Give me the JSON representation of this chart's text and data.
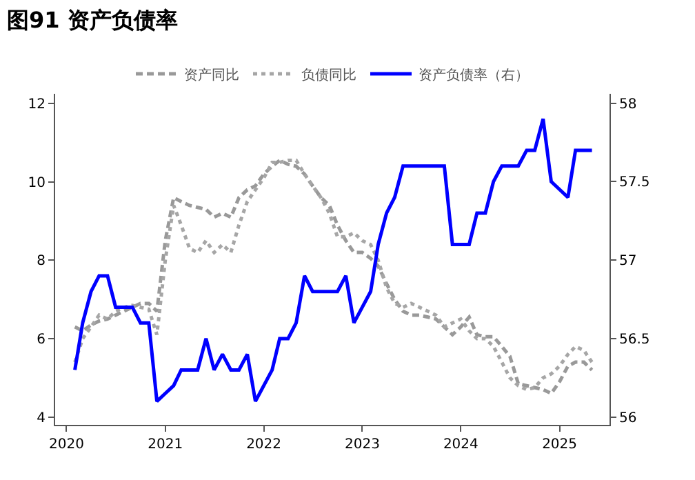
{
  "chart_data": {
    "type": "line",
    "title": "图91 资产负债率",
    "legend": "top",
    "marker": "none",
    "x": [
      "2020-02",
      "2020-03",
      "2020-04",
      "2020-05",
      "2020-06",
      "2020-07",
      "2020-08",
      "2020-09",
      "2020-10",
      "2020-11",
      "2020-12",
      "2021-01",
      "2021-02",
      "2021-03",
      "2021-04",
      "2021-05",
      "2021-06",
      "2021-07",
      "2021-08",
      "2021-09",
      "2021-10",
      "2021-11",
      "2021-12",
      "2022-01",
      "2022-02",
      "2022-03",
      "2022-04",
      "2022-05",
      "2022-06",
      "2022-07",
      "2022-08",
      "2022-09",
      "2022-10",
      "2022-11",
      "2022-12",
      "2023-01",
      "2023-02",
      "2023-03",
      "2023-04",
      "2023-05",
      "2023-06",
      "2023-07",
      "2023-08",
      "2023-09",
      "2023-10",
      "2023-11",
      "2023-12",
      "2024-01",
      "2024-02",
      "2024-03",
      "2024-04",
      "2024-05",
      "2024-06",
      "2024-07",
      "2024-08",
      "2024-09",
      "2024-10",
      "2024-11",
      "2024-12",
      "2025-01",
      "2025-02",
      "2025-03",
      "2025-04",
      "2025-05"
    ],
    "xlim": [
      "2019-11-20",
      "2025-07-05"
    ],
    "xticks": [
      "2020",
      "2021",
      "2022",
      "2023",
      "2024",
      "2025"
    ],
    "ylim": [
      3.8,
      12.25
    ],
    "yticks": [
      4,
      6,
      8,
      10,
      12
    ],
    "y2lim": [
      55.95,
      58.06
    ],
    "y2ticks": [
      56,
      56.5,
      57,
      57.5,
      58
    ],
    "series": [
      {
        "name": "资产同比",
        "color": "#999999",
        "line_style": "dashed",
        "values": [
          6.3,
          6.2,
          6.35,
          6.45,
          6.5,
          6.6,
          6.7,
          6.8,
          6.9,
          6.9,
          6.7,
          8.5,
          9.6,
          9.5,
          9.4,
          9.35,
          9.3,
          9.1,
          9.2,
          9.1,
          9.6,
          9.8,
          9.9,
          10.2,
          10.4,
          10.55,
          10.45,
          10.4,
          10.2,
          9.9,
          9.6,
          9.4,
          8.9,
          8.5,
          8.2,
          8.2,
          8.05,
          7.85,
          7.4,
          7.0,
          6.7,
          6.6,
          6.6,
          6.55,
          6.5,
          6.3,
          6.1,
          6.3,
          6.55,
          6.1,
          6.05,
          6.05,
          5.8,
          5.55,
          4.85,
          4.8,
          4.75,
          4.7,
          4.6,
          4.9,
          5.3,
          5.4,
          5.4,
          5.2
        ]
      },
      {
        "name": "负债同比",
        "color": "#a6a6a6",
        "line_style": "dotted",
        "values": [
          5.4,
          6.0,
          6.3,
          6.6,
          6.5,
          6.7,
          6.8,
          6.85,
          6.8,
          6.75,
          6.1,
          8.0,
          9.4,
          8.9,
          8.3,
          8.2,
          8.5,
          8.2,
          8.4,
          8.2,
          8.9,
          9.5,
          9.8,
          10.1,
          10.5,
          10.5,
          10.55,
          10.55,
          10.2,
          9.9,
          9.6,
          9.2,
          8.6,
          8.6,
          8.7,
          8.5,
          8.4,
          8.0,
          7.3,
          6.9,
          6.8,
          6.9,
          6.8,
          6.7,
          6.6,
          6.3,
          6.4,
          6.5,
          6.2,
          6.0,
          6.0,
          5.8,
          5.4,
          5.0,
          4.8,
          4.7,
          4.75,
          5.0,
          5.1,
          5.3,
          5.6,
          5.8,
          5.7,
          5.4
        ]
      },
      {
        "name": "资产负债率（右）",
        "color": "#0000ff",
        "line_style": "solid",
        "axis": "y2",
        "values": [
          56.3,
          56.6,
          56.8,
          56.9,
          56.9,
          56.7,
          56.7,
          56.7,
          56.6,
          56.6,
          56.1,
          56.15,
          56.2,
          56.3,
          56.3,
          56.3,
          56.5,
          56.3,
          56.4,
          56.3,
          56.3,
          56.4,
          56.1,
          56.2,
          56.3,
          56.5,
          56.5,
          56.6,
          56.9,
          56.8,
          56.8,
          56.8,
          56.8,
          56.9,
          56.6,
          56.7,
          56.8,
          57.1,
          57.3,
          57.4,
          57.6,
          57.6,
          57.6,
          57.6,
          57.6,
          57.6,
          57.1,
          57.1,
          57.1,
          57.3,
          57.3,
          57.5,
          57.6,
          57.6,
          57.6,
          57.7,
          57.7,
          57.9,
          57.5,
          57.45,
          57.4,
          57.7,
          57.7,
          57.7
        ]
      }
    ]
  }
}
